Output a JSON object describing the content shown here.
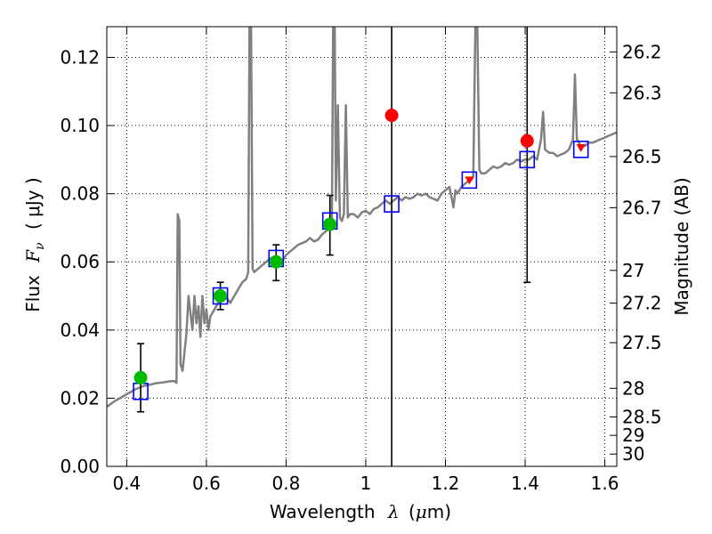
{
  "chart_data": {
    "type": "scatter",
    "xlabel": {
      "prefix": "Wavelength",
      "symbol": "λ",
      "unit_open": "(",
      "unit_mu": "μ",
      "unit_rest": "m)"
    },
    "ylabel": {
      "prefix": "Flux",
      "symbol": "F",
      "subscript": "ν",
      "unit": "( μJy )"
    },
    "y2label": "Magnitude (AB)",
    "xlim": [
      0.35,
      1.63
    ],
    "ylim": [
      0.0,
      0.129
    ],
    "grid": true,
    "x_ticks": [
      0.4,
      0.6,
      0.8,
      1.0,
      1.2,
      1.4,
      1.6
    ],
    "x_tick_labels": [
      "0.4",
      "0.6",
      "0.8",
      "1",
      "1.2",
      "1.4",
      "1.6"
    ],
    "y_ticks": [
      0.0,
      0.02,
      0.04,
      0.06,
      0.08,
      0.1,
      0.12
    ],
    "y_tick_labels": [
      "0.00",
      "0.02",
      "0.04",
      "0.06",
      "0.08",
      "0.10",
      "0.12"
    ],
    "mag_ticks": [
      {
        "label": "26.2",
        "flux": 0.1216
      },
      {
        "label": "26.3",
        "flux": 0.1096
      },
      {
        "label": "26.5",
        "flux": 0.0909
      },
      {
        "label": "26.7",
        "flux": 0.0759
      },
      {
        "label": "27",
        "flux": 0.0575
      },
      {
        "label": "27.2",
        "flux": 0.0479
      },
      {
        "label": "27.5",
        "flux": 0.0363
      },
      {
        "label": "28",
        "flux": 0.0229
      },
      {
        "label": "28.5",
        "flux": 0.0145
      },
      {
        "label": "29",
        "flux": 0.0091
      },
      {
        "label": "30",
        "flux": 0.0036
      }
    ],
    "model_spectrum": {
      "color": "#808080",
      "points": [
        [
          0.35,
          0.0175
        ],
        [
          0.36,
          0.0183
        ],
        [
          0.37,
          0.0192
        ],
        [
          0.38,
          0.0198
        ],
        [
          0.39,
          0.0205
        ],
        [
          0.4,
          0.0212
        ],
        [
          0.41,
          0.0218
        ],
        [
          0.42,
          0.0225
        ],
        [
          0.43,
          0.023
        ],
        [
          0.44,
          0.0235
        ],
        [
          0.45,
          0.0238
        ],
        [
          0.46,
          0.024
        ],
        [
          0.47,
          0.0243
        ],
        [
          0.48,
          0.0245
        ],
        [
          0.49,
          0.0246
        ],
        [
          0.5,
          0.0248
        ],
        [
          0.51,
          0.025
        ],
        [
          0.52,
          0.025
        ],
        [
          0.525,
          0.0245
        ],
        [
          0.528,
          0.074
        ],
        [
          0.532,
          0.072
        ],
        [
          0.535,
          0.03
        ],
        [
          0.54,
          0.028
        ],
        [
          0.55,
          0.039
        ],
        [
          0.555,
          0.05
        ],
        [
          0.56,
          0.045
        ],
        [
          0.565,
          0.04
        ],
        [
          0.57,
          0.05
        ],
        [
          0.575,
          0.042
        ],
        [
          0.58,
          0.047
        ],
        [
          0.585,
          0.038
        ],
        [
          0.59,
          0.05
        ],
        [
          0.595,
          0.042
        ],
        [
          0.6,
          0.046
        ],
        [
          0.605,
          0.04
        ],
        [
          0.61,
          0.044
        ],
        [
          0.62,
          0.046
        ],
        [
          0.63,
          0.048
        ],
        [
          0.64,
          0.049
        ],
        [
          0.65,
          0.0495
        ],
        [
          0.66,
          0.048
        ],
        [
          0.67,
          0.05
        ],
        [
          0.68,
          0.052
        ],
        [
          0.69,
          0.054
        ],
        [
          0.7,
          0.055
        ],
        [
          0.705,
          0.057
        ],
        [
          0.708,
          0.129
        ],
        [
          0.712,
          0.129
        ],
        [
          0.716,
          0.058
        ],
        [
          0.72,
          0.057
        ],
        [
          0.73,
          0.058
        ],
        [
          0.74,
          0.059
        ],
        [
          0.75,
          0.06
        ],
        [
          0.76,
          0.061
        ],
        [
          0.77,
          0.0615
        ],
        [
          0.78,
          0.0605
        ],
        [
          0.79,
          0.06
        ],
        [
          0.8,
          0.062
        ],
        [
          0.81,
          0.063
        ],
        [
          0.82,
          0.064
        ],
        [
          0.83,
          0.065
        ],
        [
          0.84,
          0.0655
        ],
        [
          0.85,
          0.066
        ],
        [
          0.86,
          0.067
        ],
        [
          0.87,
          0.066
        ],
        [
          0.88,
          0.0665
        ],
        [
          0.89,
          0.068
        ],
        [
          0.9,
          0.069
        ],
        [
          0.91,
          0.07
        ],
        [
          0.915,
          0.071
        ],
        [
          0.918,
          0.129
        ],
        [
          0.922,
          0.129
        ],
        [
          0.925,
          0.078
        ],
        [
          0.93,
          0.106
        ],
        [
          0.935,
          0.073
        ],
        [
          0.94,
          0.072
        ],
        [
          0.945,
          0.074
        ],
        [
          0.95,
          0.106
        ],
        [
          0.955,
          0.073
        ],
        [
          0.96,
          0.074
        ],
        [
          0.97,
          0.074
        ],
        [
          0.98,
          0.073
        ],
        [
          0.99,
          0.0745
        ],
        [
          1.0,
          0.075
        ],
        [
          1.01,
          0.074
        ],
        [
          1.02,
          0.0755
        ],
        [
          1.03,
          0.076
        ],
        [
          1.04,
          0.077
        ],
        [
          1.05,
          0.078
        ],
        [
          1.06,
          0.077
        ],
        [
          1.07,
          0.078
        ],
        [
          1.08,
          0.079
        ],
        [
          1.09,
          0.078
        ],
        [
          1.1,
          0.079
        ],
        [
          1.11,
          0.0785
        ],
        [
          1.12,
          0.079
        ],
        [
          1.13,
          0.08
        ],
        [
          1.14,
          0.0795
        ],
        [
          1.15,
          0.08
        ],
        [
          1.16,
          0.079
        ],
        [
          1.17,
          0.0785
        ],
        [
          1.18,
          0.078
        ],
        [
          1.19,
          0.08
        ],
        [
          1.2,
          0.081
        ],
        [
          1.21,
          0.082
        ],
        [
          1.22,
          0.076
        ],
        [
          1.225,
          0.081
        ],
        [
          1.23,
          0.08
        ],
        [
          1.24,
          0.082
        ],
        [
          1.25,
          0.083
        ],
        [
          1.26,
          0.084
        ],
        [
          1.265,
          0.084
        ],
        [
          1.27,
          0.085
        ],
        [
          1.275,
          0.129
        ],
        [
          1.28,
          0.129
        ],
        [
          1.285,
          0.087
        ],
        [
          1.29,
          0.086
        ],
        [
          1.3,
          0.086
        ],
        [
          1.31,
          0.087
        ],
        [
          1.32,
          0.088
        ],
        [
          1.33,
          0.0875
        ],
        [
          1.34,
          0.088
        ],
        [
          1.35,
          0.089
        ],
        [
          1.36,
          0.0885
        ],
        [
          1.37,
          0.089
        ],
        [
          1.38,
          0.09
        ],
        [
          1.39,
          0.0895
        ],
        [
          1.4,
          0.09
        ],
        [
          1.41,
          0.09
        ],
        [
          1.42,
          0.091
        ],
        [
          1.43,
          0.09
        ],
        [
          1.44,
          0.096
        ],
        [
          1.445,
          0.104
        ],
        [
          1.45,
          0.093
        ],
        [
          1.46,
          0.092
        ],
        [
          1.47,
          0.092
        ],
        [
          1.48,
          0.091
        ],
        [
          1.49,
          0.0915
        ],
        [
          1.5,
          0.092
        ],
        [
          1.51,
          0.093
        ],
        [
          1.52,
          0.096
        ],
        [
          1.525,
          0.115
        ],
        [
          1.53,
          0.096
        ],
        [
          1.54,
          0.094
        ],
        [
          1.55,
          0.094
        ],
        [
          1.56,
          0.095
        ],
        [
          1.57,
          0.095
        ],
        [
          1.58,
          0.0955
        ],
        [
          1.59,
          0.096
        ],
        [
          1.6,
          0.0965
        ],
        [
          1.61,
          0.097
        ],
        [
          1.62,
          0.0975
        ],
        [
          1.63,
          0.098
        ]
      ]
    },
    "model_photometry": {
      "marker": "square",
      "color": "#0000ff",
      "points": [
        [
          0.435,
          0.022
        ],
        [
          0.635,
          0.05
        ],
        [
          0.775,
          0.061
        ],
        [
          0.91,
          0.072
        ],
        [
          1.065,
          0.077
        ],
        [
          1.26,
          0.084
        ],
        [
          1.405,
          0.09
        ],
        [
          1.54,
          0.093
        ]
      ]
    },
    "detections": {
      "marker": "circle",
      "color": "#00bb00",
      "points": [
        {
          "x": 0.435,
          "y": 0.026,
          "err_low": 0.016,
          "err_high": 0.036
        },
        {
          "x": 0.635,
          "y": 0.05,
          "err_low": 0.046,
          "err_high": 0.054
        },
        {
          "x": 0.775,
          "y": 0.06,
          "err_low": 0.0545,
          "err_high": 0.065
        },
        {
          "x": 0.91,
          "y": 0.071,
          "err_low": 0.062,
          "err_high": 0.0795
        }
      ]
    },
    "non_detections": {
      "marker": "circle",
      "color": "#ff0000",
      "points": [
        {
          "x": 1.065,
          "y": 0.103,
          "err_low": 0.0,
          "err_high": 0.129
        },
        {
          "x": 1.26,
          "y": 0.084,
          "err_low": null,
          "err_high": null
        },
        {
          "x": 1.405,
          "y": 0.0955,
          "err_low": 0.054,
          "err_high": 0.129
        },
        {
          "x": 1.54,
          "y": 0.0935,
          "err_low": null,
          "err_high": null
        }
      ]
    }
  }
}
